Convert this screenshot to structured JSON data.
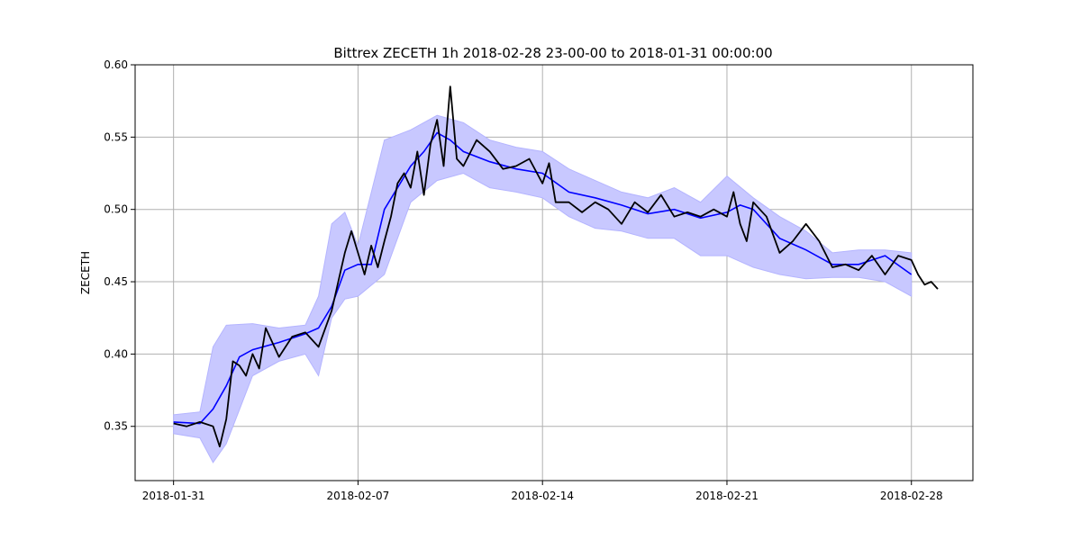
{
  "chart_data": {
    "type": "line",
    "title": "Bittrex ZECETH 1h 2018-02-28 23-00-00 to 2018-01-31 00:00:00",
    "xlabel": "",
    "ylabel": "ZECETH",
    "x_ticks": [
      "2018-01-31",
      "2018-02-07",
      "2018-02-14",
      "2018-02-21",
      "2018-02-28"
    ],
    "xlim": [
      "2018-01-29T13:00",
      "2018-03-02T08:00"
    ],
    "y_ticks": [
      "0.35",
      "0.40",
      "0.45",
      "0.50",
      "0.55",
      "0.60"
    ],
    "ylim": [
      0.3125,
      0.6
    ],
    "grid": true,
    "colors": {
      "price": "#000000",
      "moving_average": "#0000ff",
      "band": "#c8c8ff"
    },
    "series": [
      {
        "kind": "price",
        "x": [
          "2018-01-31",
          "2018-01-31T12:00",
          "2018-02-01",
          "2018-02-01T12:00",
          "2018-02-01T18:00",
          "2018-02-02",
          "2018-02-02T06:00",
          "2018-02-02T12:00",
          "2018-02-02T18:00",
          "2018-02-03",
          "2018-02-03T06:00",
          "2018-02-03T12:00",
          "2018-02-04",
          "2018-02-04T12:00",
          "2018-02-05",
          "2018-02-05T12:00",
          "2018-02-06",
          "2018-02-06T06:00",
          "2018-02-06T12:00",
          "2018-02-06T18:00",
          "2018-02-07",
          "2018-02-07T06:00",
          "2018-02-07T12:00",
          "2018-02-07T18:00",
          "2018-02-08",
          "2018-02-08T06:00",
          "2018-02-08T12:00",
          "2018-02-08T18:00",
          "2018-02-09",
          "2018-02-09T06:00",
          "2018-02-09T12:00",
          "2018-02-09T18:00",
          "2018-02-10",
          "2018-02-10T06:00",
          "2018-02-10T12:00",
          "2018-02-10T18:00",
          "2018-02-11",
          "2018-02-11T12:00",
          "2018-02-12",
          "2018-02-12T12:00",
          "2018-02-13",
          "2018-02-13T12:00",
          "2018-02-14",
          "2018-02-14T06:00",
          "2018-02-14T12:00",
          "2018-02-15",
          "2018-02-15T12:00",
          "2018-02-16",
          "2018-02-16T12:00",
          "2018-02-17",
          "2018-02-17T12:00",
          "2018-02-18",
          "2018-02-18T12:00",
          "2018-02-19",
          "2018-02-19T12:00",
          "2018-02-20",
          "2018-02-20T12:00",
          "2018-02-21",
          "2018-02-21T06:00",
          "2018-02-21T12:00",
          "2018-02-21T18:00",
          "2018-02-22",
          "2018-02-22T06:00",
          "2018-02-22T12:00",
          "2018-02-23",
          "2018-02-23T12:00",
          "2018-02-24",
          "2018-02-24T12:00",
          "2018-02-25",
          "2018-02-25T12:00",
          "2018-02-26",
          "2018-02-26T12:00",
          "2018-02-27",
          "2018-02-27T12:00",
          "2018-02-28",
          "2018-02-28T06:00",
          "2018-02-28T12:00",
          "2018-02-28T18:00",
          "2018-03-01"
        ],
        "y": [
          0.352,
          0.35,
          0.353,
          0.35,
          0.336,
          0.355,
          0.395,
          0.392,
          0.385,
          0.4,
          0.39,
          0.418,
          0.398,
          0.412,
          0.415,
          0.405,
          0.43,
          0.45,
          0.47,
          0.485,
          0.47,
          0.455,
          0.475,
          0.46,
          0.478,
          0.495,
          0.518,
          0.525,
          0.515,
          0.54,
          0.51,
          0.545,
          0.562,
          0.53,
          0.585,
          0.535,
          0.53,
          0.548,
          0.54,
          0.528,
          0.53,
          0.535,
          0.518,
          0.532,
          0.505,
          0.505,
          0.498,
          0.505,
          0.5,
          0.49,
          0.505,
          0.498,
          0.51,
          0.495,
          0.498,
          0.495,
          0.5,
          0.495,
          0.512,
          0.49,
          0.478,
          0.505,
          0.5,
          0.495,
          0.47,
          0.478,
          0.49,
          0.478,
          0.46,
          0.462,
          0.458,
          0.468,
          0.455,
          0.468,
          0.465,
          0.455,
          0.448,
          0.45,
          0.445
        ]
      },
      {
        "kind": "moving_average",
        "x": [
          "2018-01-31",
          "2018-02-01",
          "2018-02-01T12:00",
          "2018-02-02",
          "2018-02-02T12:00",
          "2018-02-03",
          "2018-02-04",
          "2018-02-05",
          "2018-02-05T12:00",
          "2018-02-06",
          "2018-02-06T12:00",
          "2018-02-07",
          "2018-02-07T12:00",
          "2018-02-08",
          "2018-02-09",
          "2018-02-09T12:00",
          "2018-02-10",
          "2018-02-10T12:00",
          "2018-02-11",
          "2018-02-12",
          "2018-02-13",
          "2018-02-14",
          "2018-02-15",
          "2018-02-16",
          "2018-02-17",
          "2018-02-18",
          "2018-02-19",
          "2018-02-20",
          "2018-02-21",
          "2018-02-21T12:00",
          "2018-02-22",
          "2018-02-23",
          "2018-02-24",
          "2018-02-25",
          "2018-02-26",
          "2018-02-27",
          "2018-02-28"
        ],
        "y": [
          0.353,
          0.352,
          0.362,
          0.378,
          0.398,
          0.403,
          0.408,
          0.414,
          0.418,
          0.433,
          0.458,
          0.462,
          0.462,
          0.5,
          0.53,
          0.54,
          0.553,
          0.548,
          0.54,
          0.533,
          0.528,
          0.525,
          0.512,
          0.508,
          0.503,
          0.497,
          0.5,
          0.494,
          0.498,
          0.503,
          0.5,
          0.48,
          0.472,
          0.462,
          0.462,
          0.468,
          0.455
        ]
      },
      {
        "kind": "band_upper",
        "x": [
          "2018-01-31",
          "2018-02-01",
          "2018-02-01T12:00",
          "2018-02-02",
          "2018-02-03",
          "2018-02-04",
          "2018-02-05",
          "2018-02-05T12:00",
          "2018-02-06",
          "2018-02-06T12:00",
          "2018-02-07",
          "2018-02-08",
          "2018-02-09",
          "2018-02-10",
          "2018-02-11",
          "2018-02-12",
          "2018-02-13",
          "2018-02-14",
          "2018-02-15",
          "2018-02-16",
          "2018-02-17",
          "2018-02-18",
          "2018-02-19",
          "2018-02-20",
          "2018-02-21",
          "2018-02-22",
          "2018-02-23",
          "2018-02-24",
          "2018-02-25",
          "2018-02-26",
          "2018-02-27",
          "2018-02-28"
        ],
        "y": [
          0.358,
          0.36,
          0.405,
          0.42,
          0.421,
          0.418,
          0.42,
          0.44,
          0.49,
          0.498,
          0.475,
          0.548,
          0.555,
          0.565,
          0.56,
          0.548,
          0.543,
          0.54,
          0.528,
          0.52,
          0.512,
          0.508,
          0.515,
          0.505,
          0.523,
          0.508,
          0.495,
          0.485,
          0.47,
          0.472,
          0.472,
          0.47
        ]
      },
      {
        "kind": "band_lower",
        "x": [
          "2018-01-31",
          "2018-02-01",
          "2018-02-01T12:00",
          "2018-02-02",
          "2018-02-03",
          "2018-02-04",
          "2018-02-05",
          "2018-02-05T12:00",
          "2018-02-06",
          "2018-02-06T12:00",
          "2018-02-07",
          "2018-02-08",
          "2018-02-09",
          "2018-02-10",
          "2018-02-11",
          "2018-02-12",
          "2018-02-13",
          "2018-02-14",
          "2018-02-15",
          "2018-02-16",
          "2018-02-17",
          "2018-02-18",
          "2018-02-19",
          "2018-02-20",
          "2018-02-21",
          "2018-02-22",
          "2018-02-23",
          "2018-02-24",
          "2018-02-25",
          "2018-02-26",
          "2018-02-27",
          "2018-02-28"
        ],
        "y": [
          0.345,
          0.342,
          0.325,
          0.338,
          0.385,
          0.395,
          0.4,
          0.385,
          0.425,
          0.438,
          0.44,
          0.455,
          0.505,
          0.52,
          0.525,
          0.515,
          0.512,
          0.508,
          0.495,
          0.487,
          0.485,
          0.48,
          0.48,
          0.468,
          0.468,
          0.46,
          0.455,
          0.452,
          0.453,
          0.453,
          0.45,
          0.44
        ]
      }
    ]
  }
}
